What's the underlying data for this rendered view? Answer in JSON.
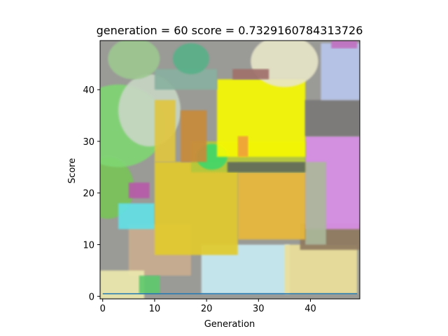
{
  "chart_data": {
    "type": "heatmap",
    "title": "generation = 60  score = 0.7329160784313726",
    "xlabel": "Generation",
    "ylabel": "Score",
    "xlim": [
      -0.5,
      49.5
    ],
    "ylim": [
      49.5,
      -0.5
    ],
    "xticks": [
      0,
      10,
      20,
      30,
      40
    ],
    "yticks": [
      0,
      10,
      20,
      30,
      40
    ],
    "grid": false,
    "series": [
      {
        "x": [
          0,
          49
        ],
        "y": [
          0.5,
          0.5
        ],
        "color": "#1f77b4"
      }
    ],
    "image_shapes": [
      {
        "shape": "rect",
        "x0": -0.5,
        "y0": -0.5,
        "x1": 49.5,
        "y1": 49.5,
        "color": "#9a9a96"
      },
      {
        "shape": "rect",
        "x0": 5,
        "y0": 4,
        "x1": 17,
        "y1": 14,
        "color": "#c9ac8e"
      },
      {
        "shape": "rect",
        "x0": -0.5,
        "y0": -0.5,
        "x1": 8,
        "y1": 5,
        "color": "#ece8ac"
      },
      {
        "shape": "rect",
        "x0": 7,
        "y0": 0.5,
        "x1": 11,
        "y1": 4,
        "color": "#5fc96e"
      },
      {
        "shape": "rect",
        "x0": 19,
        "y0": 0.5,
        "x1": 36,
        "y1": 10,
        "color": "#c7eaf2"
      },
      {
        "shape": "rect",
        "x0": 35,
        "y0": 0.5,
        "x1": 49,
        "y1": 10,
        "color": "#ecdf9a"
      },
      {
        "shape": "rect",
        "x0": 38,
        "y0": 9,
        "x1": 49.5,
        "y1": 14,
        "color": "#8e7a5e"
      },
      {
        "shape": "rect",
        "x0": 39,
        "y0": 13,
        "x1": 49.5,
        "y1": 31,
        "color": "#d88ee6"
      },
      {
        "shape": "rect",
        "x0": 39,
        "y0": 10,
        "x1": 43,
        "y1": 26,
        "color": "#aab79a"
      },
      {
        "shape": "rect",
        "x0": 26,
        "y0": 11,
        "x1": 39,
        "y1": 24,
        "color": "#e8b83a"
      },
      {
        "shape": "ellipse",
        "cx": 1,
        "cy": 21,
        "rx": 5,
        "ry": 6,
        "color": "#78c456"
      },
      {
        "shape": "rect",
        "x0": 3,
        "y0": 13,
        "x1": 10,
        "y1": 18,
        "color": "#63dfe6"
      },
      {
        "shape": "rect",
        "x0": 5,
        "y0": 19,
        "x1": 9,
        "y1": 22,
        "color": "#b65aa8"
      },
      {
        "shape": "rect",
        "x0": 10,
        "y0": 8,
        "x1": 26,
        "y1": 26,
        "color": "#e2ca2e"
      },
      {
        "shape": "rect",
        "x0": 17,
        "y0": 24,
        "x1": 39,
        "y1": 30,
        "color": "#b4c83a"
      },
      {
        "shape": "rect",
        "x0": 24,
        "y0": 24,
        "x1": 39,
        "y1": 26,
        "color": "#5e6a5a"
      },
      {
        "shape": "ellipse",
        "cx": 21,
        "cy": 27,
        "rx": 3,
        "ry": 2.5,
        "color": "#3ed66a"
      },
      {
        "shape": "ellipse",
        "cx": 3,
        "cy": 33,
        "rx": 9,
        "ry": 8,
        "color": "#7fd672"
      },
      {
        "shape": "ellipse",
        "cx": 9,
        "cy": 36,
        "rx": 6,
        "ry": 7,
        "color": "#c8d6c4"
      },
      {
        "shape": "rect",
        "x0": 10,
        "y0": 26,
        "x1": 14,
        "y1": 38,
        "color": "#e0c640"
      },
      {
        "shape": "rect",
        "x0": 15,
        "y0": 26,
        "x1": 20,
        "y1": 36,
        "color": "#c88a3a"
      },
      {
        "shape": "rect",
        "x0": 22,
        "y0": 27,
        "x1": 39,
        "y1": 42,
        "color": "#f6fa06"
      },
      {
        "shape": "rect",
        "x0": 26,
        "y0": 27,
        "x1": 28,
        "y1": 31,
        "color": "#f0a03a"
      },
      {
        "shape": "rect",
        "x0": 39,
        "y0": 31,
        "x1": 49.5,
        "y1": 38,
        "color": "#7a7878"
      },
      {
        "shape": "rect",
        "x0": 42,
        "y0": 38,
        "x1": 49.5,
        "y1": 49,
        "color": "#b8c6ec"
      },
      {
        "shape": "rect",
        "x0": 10,
        "y0": 40,
        "x1": 22,
        "y1": 44,
        "color": "#88b0a0"
      },
      {
        "shape": "ellipse",
        "cx": 6,
        "cy": 46,
        "rx": 5,
        "ry": 4,
        "color": "#9cc890"
      },
      {
        "shape": "ellipse",
        "cx": 17,
        "cy": 46,
        "rx": 3.5,
        "ry": 3,
        "color": "#58b088"
      },
      {
        "shape": "ellipse",
        "cx": 35,
        "cy": 45.5,
        "rx": 6.5,
        "ry": 5,
        "color": "#e8e6c8"
      },
      {
        "shape": "rect",
        "x0": 25,
        "y0": 42,
        "x1": 32,
        "y1": 44,
        "color": "#a0706a"
      },
      {
        "shape": "rect",
        "x0": 44,
        "y0": 48,
        "x1": 49,
        "y1": 49.5,
        "color": "#c070c0"
      }
    ]
  }
}
